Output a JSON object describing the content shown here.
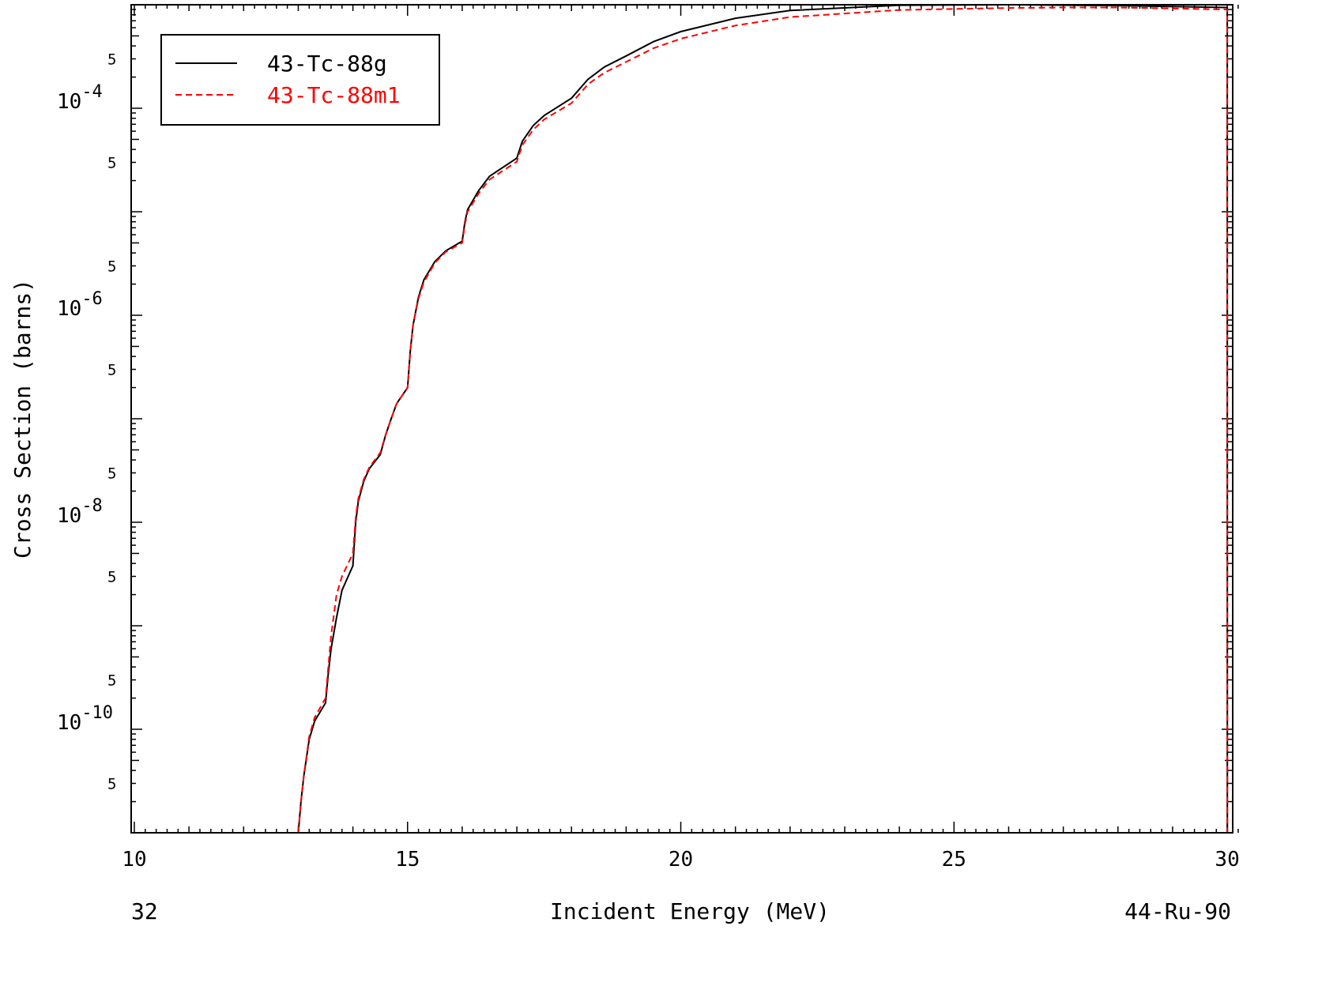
{
  "chart_data": {
    "type": "line",
    "title": "",
    "xlabel": "Incident Energy (MeV)",
    "ylabel": "Cross Section (barns)",
    "footer_left": "32",
    "footer_right": "44-Ru-90",
    "xlim": [
      10,
      30.1
    ],
    "ylim": [
      1e-11,
      0.001
    ],
    "y_scale": "log",
    "x_ticks": [
      "10",
      "15",
      "20",
      "25",
      "30"
    ],
    "x_tick_values": [
      10,
      15,
      20,
      25,
      30
    ],
    "y_major_ticks": [
      {
        "mantissa": "10",
        "exponent": "-4",
        "value": 0.0001
      },
      {
        "mantissa": "10",
        "exponent": "-6",
        "value": 1e-06
      },
      {
        "mantissa": "10",
        "exponent": "-8",
        "value": 1e-08
      },
      {
        "mantissa": "10",
        "exponent": "-10",
        "value": 1e-10
      }
    ],
    "y_minor_label": "5",
    "legend_position": "top-left",
    "series": [
      {
        "name": "43-Tc-88g",
        "color": "#000000",
        "dash": "solid",
        "x": [
          13.0,
          13.05,
          13.1,
          13.2,
          13.3,
          13.5,
          13.55,
          13.6,
          13.7,
          13.8,
          14.0,
          14.05,
          14.1,
          14.2,
          14.3,
          14.5,
          14.6,
          14.7,
          14.8,
          15.0,
          15.05,
          15.1,
          15.2,
          15.3,
          15.5,
          15.7,
          16.0,
          16.05,
          16.1,
          16.3,
          16.5,
          17.0,
          17.1,
          17.3,
          17.5,
          18.0,
          18.3,
          18.6,
          19.0,
          19.5,
          20.0,
          21.0,
          22.0,
          24.0,
          26.0,
          28.0,
          30.0,
          30.001
        ],
        "y": [
          1e-11,
          2e-11,
          3.5e-11,
          8e-11,
          1.2e-10,
          1.8e-10,
          3.5e-10,
          6e-10,
          1.2e-09,
          2.2e-09,
          3.8e-09,
          1e-08,
          1.6e-08,
          2.5e-08,
          3.3e-08,
          4.5e-08,
          7e-08,
          1e-07,
          1.4e-07,
          2e-07,
          4.5e-07,
          8e-07,
          1.5e-06,
          2.2e-06,
          3.3e-06,
          4.2e-06,
          5.2e-06,
          8e-06,
          1.05e-05,
          1.6e-05,
          2.2e-05,
          3.3e-05,
          4.8e-05,
          6.8e-05,
          8.5e-05,
          0.000125,
          0.00019,
          0.00025,
          0.00032,
          0.00044,
          0.00055,
          0.00074,
          0.00088,
          0.00099,
          0.001,
          0.00098,
          0.00094,
          1e-11
        ]
      },
      {
        "name": "43-Tc-88m1",
        "color": "#ff0000",
        "dash": "dashed",
        "x": [
          13.0,
          13.05,
          13.1,
          13.2,
          13.3,
          13.5,
          13.55,
          13.6,
          13.7,
          13.8,
          14.0,
          14.05,
          14.1,
          14.2,
          14.3,
          14.5,
          14.6,
          14.7,
          14.8,
          15.0,
          15.05,
          15.1,
          15.2,
          15.3,
          15.5,
          15.7,
          16.0,
          16.05,
          16.1,
          16.3,
          16.5,
          17.0,
          17.1,
          17.3,
          17.5,
          18.0,
          18.3,
          18.6,
          19.0,
          19.5,
          20.0,
          21.0,
          22.0,
          24.0,
          26.0,
          27.0,
          28.0,
          30.0,
          30.001
        ],
        "y": [
          1e-11,
          2e-11,
          3.5e-11,
          8.5e-11,
          1.3e-10,
          2e-10,
          4e-10,
          8e-10,
          2e-09,
          3e-09,
          5e-09,
          1.1e-08,
          1.7e-08,
          2.6e-08,
          3.4e-08,
          4.7e-08,
          7e-08,
          1e-07,
          1.4e-07,
          2e-07,
          4.5e-07,
          8e-07,
          1.45e-06,
          2.1e-06,
          3.2e-06,
          4.1e-06,
          5e-06,
          7.6e-06,
          1e-05,
          1.5e-05,
          2.05e-05,
          3.05e-05,
          4.4e-05,
          6.2e-05,
          7.8e-05,
          0.000112,
          0.00017,
          0.00022,
          0.00028,
          0.00038,
          0.00047,
          0.00063,
          0.00076,
          0.00089,
          0.00093,
          0.00094,
          0.00094,
          0.0009,
          1e-11
        ]
      }
    ]
  }
}
